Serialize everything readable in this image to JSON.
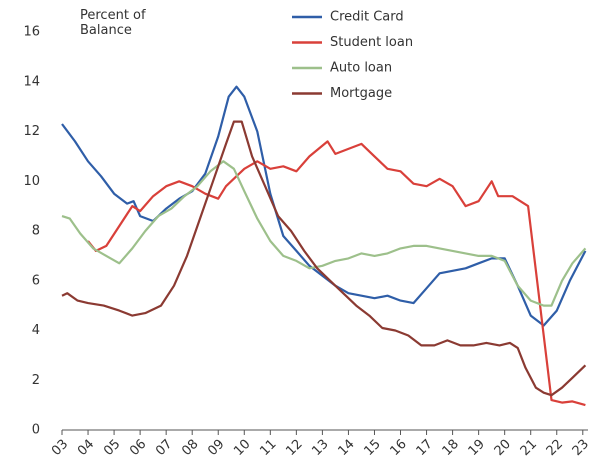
{
  "chart_data": {
    "type": "line",
    "ylabel": "Percent of Balance",
    "xlim": [
      2003,
      2023.2
    ],
    "ylim": [
      0,
      16
    ],
    "yticks": [
      0,
      2,
      4,
      6,
      8,
      10,
      12,
      14,
      16
    ],
    "xticks": [
      {
        "value": 2003,
        "label": "03"
      },
      {
        "value": 2004,
        "label": "04"
      },
      {
        "value": 2005,
        "label": "05"
      },
      {
        "value": 2006,
        "label": "06"
      },
      {
        "value": 2007,
        "label": "07"
      },
      {
        "value": 2008,
        "label": "08"
      },
      {
        "value": 2009,
        "label": "09"
      },
      {
        "value": 2010,
        "label": "10"
      },
      {
        "value": 2011,
        "label": "11"
      },
      {
        "value": 2012,
        "label": "12"
      },
      {
        "value": 2013,
        "label": "13"
      },
      {
        "value": 2014,
        "label": "14"
      },
      {
        "value": 2015,
        "label": "15"
      },
      {
        "value": 2016,
        "label": "16"
      },
      {
        "value": 2017,
        "label": "17"
      },
      {
        "value": 2018,
        "label": "18"
      },
      {
        "value": 2019,
        "label": "19"
      },
      {
        "value": 2020,
        "label": "20"
      },
      {
        "value": 2021,
        "label": "21"
      },
      {
        "value": 2022,
        "label": "22"
      },
      {
        "value": 2023,
        "label": "23"
      }
    ],
    "grid": false,
    "series": [
      {
        "name": "Credit Card",
        "color": "#2f5ea8",
        "x": [
          2003.0,
          2003.5,
          2004.0,
          2004.5,
          2005.0,
          2005.5,
          2005.75,
          2006.0,
          2006.5,
          2007.0,
          2007.5,
          2008.0,
          2008.5,
          2009.0,
          2009.4,
          2009.7,
          2010.0,
          2010.5,
          2011.0,
          2011.5,
          2012.0,
          2012.5,
          2013.0,
          2013.5,
          2014.0,
          2014.5,
          2015.0,
          2015.5,
          2016.0,
          2016.5,
          2017.0,
          2017.5,
          2018.0,
          2018.5,
          2019.0,
          2019.5,
          2020.0,
          2020.5,
          2021.0,
          2021.5,
          2022.0,
          2022.5,
          2023.1
        ],
        "values": [
          12.3,
          11.6,
          10.8,
          10.2,
          9.5,
          9.1,
          9.2,
          8.6,
          8.4,
          8.9,
          9.3,
          9.6,
          10.3,
          11.8,
          13.4,
          13.8,
          13.4,
          12.0,
          9.5,
          7.8,
          7.2,
          6.6,
          6.2,
          5.8,
          5.5,
          5.4,
          5.3,
          5.4,
          5.2,
          5.1,
          5.7,
          6.3,
          6.4,
          6.5,
          6.7,
          6.9,
          6.9,
          5.8,
          4.6,
          4.2,
          4.8,
          6.0,
          7.2
        ]
      },
      {
        "name": "Student loan",
        "color": "#d9403a",
        "x": [
          2004.0,
          2004.3,
          2004.7,
          2005.2,
          2005.7,
          2006.0,
          2006.5,
          2007.0,
          2007.5,
          2008.0,
          2008.5,
          2009.0,
          2009.3,
          2010.0,
          2010.5,
          2011.0,
          2011.5,
          2012.0,
          2012.5,
          2013.2,
          2013.5,
          2014.0,
          2014.5,
          2015.0,
          2015.5,
          2016.0,
          2016.5,
          2017.0,
          2017.5,
          2018.0,
          2018.5,
          2019.0,
          2019.5,
          2019.75,
          2020.3,
          2020.9,
          2021.8,
          2022.2,
          2022.6,
          2023.1
        ],
        "values": [
          7.6,
          7.2,
          7.4,
          8.2,
          9.0,
          8.8,
          9.4,
          9.8,
          10.0,
          9.8,
          9.5,
          9.3,
          9.8,
          10.5,
          10.8,
          10.5,
          10.6,
          10.4,
          11.0,
          11.6,
          11.1,
          11.3,
          11.5,
          11.0,
          10.5,
          10.4,
          9.9,
          9.8,
          10.1,
          9.8,
          9.0,
          9.2,
          10.0,
          9.4,
          9.4,
          9.0,
          1.2,
          1.1,
          1.15,
          1.0
        ]
      },
      {
        "name": "Auto loan",
        "color": "#9dc08b",
        "x": [
          2003.0,
          2003.3,
          2003.7,
          2004.2,
          2004.7,
          2005.2,
          2005.7,
          2006.2,
          2006.7,
          2007.2,
          2007.7,
          2008.2,
          2008.7,
          2009.2,
          2009.6,
          2010.0,
          2010.5,
          2011.0,
          2011.5,
          2012.0,
          2012.5,
          2013.0,
          2013.5,
          2014.0,
          2014.5,
          2015.0,
          2015.5,
          2016.0,
          2016.5,
          2017.0,
          2017.5,
          2018.0,
          2018.5,
          2019.0,
          2019.5,
          2020.0,
          2020.5,
          2021.0,
          2021.5,
          2021.8,
          2022.2,
          2022.6,
          2023.1
        ],
        "values": [
          8.6,
          8.5,
          7.9,
          7.3,
          7.0,
          6.7,
          7.3,
          8.0,
          8.6,
          8.9,
          9.4,
          9.8,
          10.4,
          10.8,
          10.5,
          9.6,
          8.5,
          7.6,
          7.0,
          6.8,
          6.5,
          6.6,
          6.8,
          6.9,
          7.1,
          7.0,
          7.1,
          7.3,
          7.4,
          7.4,
          7.3,
          7.2,
          7.1,
          7.0,
          7.0,
          6.8,
          5.8,
          5.2,
          5.0,
          5.0,
          6.0,
          6.7,
          7.3
        ]
      },
      {
        "name": "Mortgage",
        "color": "#8b3a32",
        "x": [
          2003.0,
          2003.2,
          2003.6,
          2004.0,
          2004.6,
          2005.2,
          2005.7,
          2006.2,
          2006.8,
          2007.3,
          2007.8,
          2008.3,
          2008.8,
          2009.3,
          2009.6,
          2009.9,
          2010.3,
          2010.8,
          2011.3,
          2011.8,
          2012.3,
          2012.8,
          2013.3,
          2013.8,
          2014.3,
          2014.8,
          2015.3,
          2015.8,
          2016.3,
          2016.8,
          2017.3,
          2017.8,
          2018.3,
          2018.8,
          2019.3,
          2019.8,
          2020.2,
          2020.5,
          2020.8,
          2021.2,
          2021.5,
          2021.8,
          2022.2,
          2022.6,
          2023.1
        ],
        "values": [
          5.4,
          5.5,
          5.2,
          5.1,
          5.0,
          4.8,
          4.6,
          4.7,
          5.0,
          5.8,
          7.0,
          8.5,
          10.0,
          11.5,
          12.4,
          12.4,
          11.0,
          9.8,
          8.6,
          8.0,
          7.2,
          6.5,
          6.0,
          5.5,
          5.0,
          4.6,
          4.1,
          4.0,
          3.8,
          3.4,
          3.4,
          3.6,
          3.4,
          3.4,
          3.5,
          3.4,
          3.5,
          3.3,
          2.5,
          1.7,
          1.5,
          1.4,
          1.7,
          2.1,
          2.6
        ]
      }
    ]
  }
}
